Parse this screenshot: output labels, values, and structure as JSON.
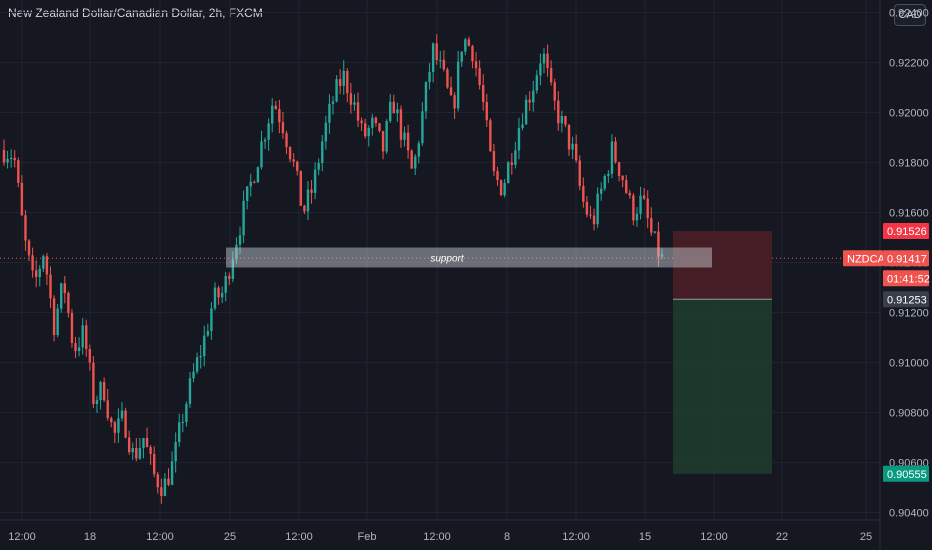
{
  "title": "New Zealand Dollar/Canadian Dollar, 2h, FXCM",
  "currency_button": "CAD",
  "colors": {
    "background": "#151821",
    "up": "#26a69a",
    "down": "#ef5350",
    "stop_zone": "#4a1f26",
    "target_zone": "#1e3a2c",
    "stop_tag": "#f23645",
    "target_tag": "#089981",
    "symbol_tag": "#ef5350",
    "entry_tag": "#3a3e4a"
  },
  "chart_data": {
    "type": "candlestick",
    "symbol": "NZDCAD",
    "y_ticks": [
      "0.92400",
      "0.92200",
      "0.92000",
      "0.91800",
      "0.91600",
      "0.91400",
      "0.91200",
      "0.91000",
      "0.90800",
      "0.90600",
      "0.90400"
    ],
    "x_ticks": [
      "12:00",
      "18",
      "12:00",
      "25",
      "12:00",
      "Feb",
      "12:00",
      "8",
      "12:00",
      "15",
      "12:00",
      "22",
      "25"
    ],
    "ylim": [
      0.9037,
      0.9245
    ],
    "close_path": [
      0.9185,
      0.9183,
      0.915,
      0.913,
      0.9145,
      0.9115,
      0.9132,
      0.9105,
      0.9112,
      0.9085,
      0.909,
      0.907,
      0.9078,
      0.9062,
      0.907,
      0.9055,
      0.905,
      0.906,
      0.908,
      0.9095,
      0.9108,
      0.9125,
      0.9128,
      0.9145,
      0.916,
      0.9175,
      0.919,
      0.9205,
      0.9195,
      0.918,
      0.916,
      0.917,
      0.919,
      0.9205,
      0.9215,
      0.9205,
      0.919,
      0.9195,
      0.9185,
      0.9205,
      0.919,
      0.9175,
      0.92,
      0.9225,
      0.9215,
      0.92,
      0.923,
      0.9225,
      0.9205,
      0.9175,
      0.917,
      0.9185,
      0.92,
      0.921,
      0.9225,
      0.9205,
      0.9195,
      0.9185,
      0.9165,
      0.9155,
      0.917,
      0.9185,
      0.9175,
      0.916,
      0.9165,
      0.915,
      0.9141
    ],
    "candle_count": 185,
    "support_zone": {
      "label": "support",
      "low": 0.9138,
      "high": 0.9146
    },
    "position": {
      "type": "short",
      "stop": "0.91526",
      "symbol_label": "NZDCAD",
      "price": "0.91417",
      "countdown": "01:41:52",
      "entry": "0.91253",
      "target": "0.90555"
    }
  }
}
